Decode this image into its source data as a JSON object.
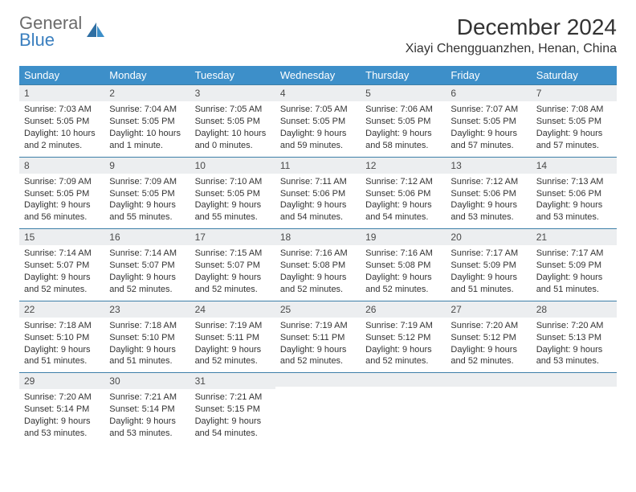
{
  "brand": {
    "general": "General",
    "blue": "Blue"
  },
  "title": "December 2024",
  "location": "Xiayi Chengguanzhen, Henan, China",
  "colors": {
    "header_bg": "#3d8fc9",
    "header_text": "#ffffff",
    "daynum_bg": "#eceef0",
    "daynum_border": "#3d7fa8",
    "logo_gray": "#6b6b6b",
    "logo_blue": "#3a7fbf"
  },
  "weekdays": [
    "Sunday",
    "Monday",
    "Tuesday",
    "Wednesday",
    "Thursday",
    "Friday",
    "Saturday"
  ],
  "weeks": [
    [
      {
        "d": "1",
        "sr": "Sunrise: 7:03 AM",
        "ss": "Sunset: 5:05 PM",
        "dl": "Daylight: 10 hours and 2 minutes."
      },
      {
        "d": "2",
        "sr": "Sunrise: 7:04 AM",
        "ss": "Sunset: 5:05 PM",
        "dl": "Daylight: 10 hours and 1 minute."
      },
      {
        "d": "3",
        "sr": "Sunrise: 7:05 AM",
        "ss": "Sunset: 5:05 PM",
        "dl": "Daylight: 10 hours and 0 minutes."
      },
      {
        "d": "4",
        "sr": "Sunrise: 7:05 AM",
        "ss": "Sunset: 5:05 PM",
        "dl": "Daylight: 9 hours and 59 minutes."
      },
      {
        "d": "5",
        "sr": "Sunrise: 7:06 AM",
        "ss": "Sunset: 5:05 PM",
        "dl": "Daylight: 9 hours and 58 minutes."
      },
      {
        "d": "6",
        "sr": "Sunrise: 7:07 AM",
        "ss": "Sunset: 5:05 PM",
        "dl": "Daylight: 9 hours and 57 minutes."
      },
      {
        "d": "7",
        "sr": "Sunrise: 7:08 AM",
        "ss": "Sunset: 5:05 PM",
        "dl": "Daylight: 9 hours and 57 minutes."
      }
    ],
    [
      {
        "d": "8",
        "sr": "Sunrise: 7:09 AM",
        "ss": "Sunset: 5:05 PM",
        "dl": "Daylight: 9 hours and 56 minutes."
      },
      {
        "d": "9",
        "sr": "Sunrise: 7:09 AM",
        "ss": "Sunset: 5:05 PM",
        "dl": "Daylight: 9 hours and 55 minutes."
      },
      {
        "d": "10",
        "sr": "Sunrise: 7:10 AM",
        "ss": "Sunset: 5:05 PM",
        "dl": "Daylight: 9 hours and 55 minutes."
      },
      {
        "d": "11",
        "sr": "Sunrise: 7:11 AM",
        "ss": "Sunset: 5:06 PM",
        "dl": "Daylight: 9 hours and 54 minutes."
      },
      {
        "d": "12",
        "sr": "Sunrise: 7:12 AM",
        "ss": "Sunset: 5:06 PM",
        "dl": "Daylight: 9 hours and 54 minutes."
      },
      {
        "d": "13",
        "sr": "Sunrise: 7:12 AM",
        "ss": "Sunset: 5:06 PM",
        "dl": "Daylight: 9 hours and 53 minutes."
      },
      {
        "d": "14",
        "sr": "Sunrise: 7:13 AM",
        "ss": "Sunset: 5:06 PM",
        "dl": "Daylight: 9 hours and 53 minutes."
      }
    ],
    [
      {
        "d": "15",
        "sr": "Sunrise: 7:14 AM",
        "ss": "Sunset: 5:07 PM",
        "dl": "Daylight: 9 hours and 52 minutes."
      },
      {
        "d": "16",
        "sr": "Sunrise: 7:14 AM",
        "ss": "Sunset: 5:07 PM",
        "dl": "Daylight: 9 hours and 52 minutes."
      },
      {
        "d": "17",
        "sr": "Sunrise: 7:15 AM",
        "ss": "Sunset: 5:07 PM",
        "dl": "Daylight: 9 hours and 52 minutes."
      },
      {
        "d": "18",
        "sr": "Sunrise: 7:16 AM",
        "ss": "Sunset: 5:08 PM",
        "dl": "Daylight: 9 hours and 52 minutes."
      },
      {
        "d": "19",
        "sr": "Sunrise: 7:16 AM",
        "ss": "Sunset: 5:08 PM",
        "dl": "Daylight: 9 hours and 52 minutes."
      },
      {
        "d": "20",
        "sr": "Sunrise: 7:17 AM",
        "ss": "Sunset: 5:09 PM",
        "dl": "Daylight: 9 hours and 51 minutes."
      },
      {
        "d": "21",
        "sr": "Sunrise: 7:17 AM",
        "ss": "Sunset: 5:09 PM",
        "dl": "Daylight: 9 hours and 51 minutes."
      }
    ],
    [
      {
        "d": "22",
        "sr": "Sunrise: 7:18 AM",
        "ss": "Sunset: 5:10 PM",
        "dl": "Daylight: 9 hours and 51 minutes."
      },
      {
        "d": "23",
        "sr": "Sunrise: 7:18 AM",
        "ss": "Sunset: 5:10 PM",
        "dl": "Daylight: 9 hours and 51 minutes."
      },
      {
        "d": "24",
        "sr": "Sunrise: 7:19 AM",
        "ss": "Sunset: 5:11 PM",
        "dl": "Daylight: 9 hours and 52 minutes."
      },
      {
        "d": "25",
        "sr": "Sunrise: 7:19 AM",
        "ss": "Sunset: 5:11 PM",
        "dl": "Daylight: 9 hours and 52 minutes."
      },
      {
        "d": "26",
        "sr": "Sunrise: 7:19 AM",
        "ss": "Sunset: 5:12 PM",
        "dl": "Daylight: 9 hours and 52 minutes."
      },
      {
        "d": "27",
        "sr": "Sunrise: 7:20 AM",
        "ss": "Sunset: 5:12 PM",
        "dl": "Daylight: 9 hours and 52 minutes."
      },
      {
        "d": "28",
        "sr": "Sunrise: 7:20 AM",
        "ss": "Sunset: 5:13 PM",
        "dl": "Daylight: 9 hours and 53 minutes."
      }
    ],
    [
      {
        "d": "29",
        "sr": "Sunrise: 7:20 AM",
        "ss": "Sunset: 5:14 PM",
        "dl": "Daylight: 9 hours and 53 minutes."
      },
      {
        "d": "30",
        "sr": "Sunrise: 7:21 AM",
        "ss": "Sunset: 5:14 PM",
        "dl": "Daylight: 9 hours and 53 minutes."
      },
      {
        "d": "31",
        "sr": "Sunrise: 7:21 AM",
        "ss": "Sunset: 5:15 PM",
        "dl": "Daylight: 9 hours and 54 minutes."
      },
      {
        "empty": true
      },
      {
        "empty": true
      },
      {
        "empty": true
      },
      {
        "empty": true
      }
    ]
  ]
}
